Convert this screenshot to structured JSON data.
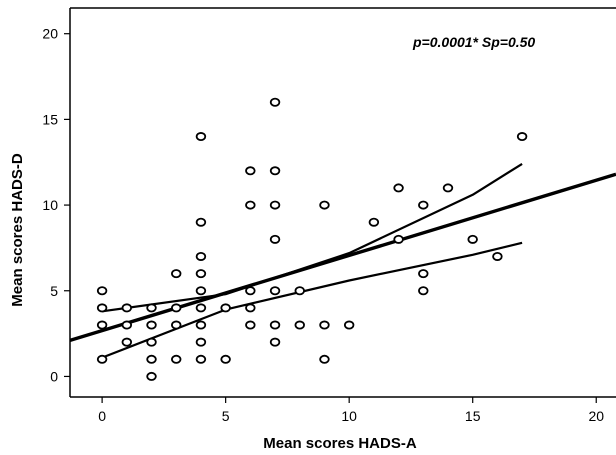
{
  "chart_data": {
    "type": "scatter",
    "title": "",
    "xlabel": "Mean scores HADS-A",
    "ylabel": "Mean scores HADS-D",
    "xlim": [
      -1.3,
      20.8
    ],
    "ylim": [
      -1.2,
      21.5
    ],
    "xticks": [
      "0",
      "5",
      "10",
      "15",
      "20"
    ],
    "yticks": [
      "0",
      "5",
      "10",
      "15",
      "20"
    ],
    "grid": false,
    "annotation": "p=0.0001*  Sp=0.50",
    "points": [
      [
        0,
        1
      ],
      [
        0,
        3
      ],
      [
        0,
        4
      ],
      [
        0,
        5
      ],
      [
        1,
        2
      ],
      [
        1,
        3
      ],
      [
        1,
        4
      ],
      [
        2,
        0
      ],
      [
        2,
        1
      ],
      [
        2,
        2
      ],
      [
        2,
        3
      ],
      [
        2,
        4
      ],
      [
        3,
        1
      ],
      [
        3,
        3
      ],
      [
        3,
        4
      ],
      [
        3,
        6
      ],
      [
        4,
        1
      ],
      [
        4,
        2
      ],
      [
        4,
        3
      ],
      [
        4,
        4
      ],
      [
        4,
        5
      ],
      [
        4,
        6
      ],
      [
        4,
        7
      ],
      [
        4,
        9
      ],
      [
        4,
        14
      ],
      [
        5,
        1
      ],
      [
        5,
        4
      ],
      [
        6,
        3
      ],
      [
        6,
        4
      ],
      [
        6,
        5
      ],
      [
        6,
        10
      ],
      [
        6,
        12
      ],
      [
        7,
        2
      ],
      [
        7,
        3
      ],
      [
        7,
        5
      ],
      [
        7,
        8
      ],
      [
        7,
        10
      ],
      [
        7,
        12
      ],
      [
        7,
        16
      ],
      [
        8,
        3
      ],
      [
        8,
        5
      ],
      [
        9,
        1
      ],
      [
        9,
        3
      ],
      [
        9,
        10
      ],
      [
        10,
        3
      ],
      [
        11,
        9
      ],
      [
        12,
        8
      ],
      [
        12,
        11
      ],
      [
        13,
        5
      ],
      [
        13,
        6
      ],
      [
        13,
        10
      ],
      [
        14,
        11
      ],
      [
        15,
        8
      ],
      [
        16,
        7
      ],
      [
        17,
        14
      ]
    ],
    "regression_line": {
      "x": [
        -1.3,
        20.8
      ],
      "y": [
        2.1,
        11.8
      ]
    },
    "ci_upper": {
      "x": [
        0,
        5,
        10,
        15,
        17
      ],
      "y": [
        3.8,
        4.8,
        7.2,
        10.6,
        12.4
      ]
    },
    "ci_lower": {
      "x": [
        0,
        5,
        10,
        15,
        17
      ],
      "y": [
        1.1,
        3.9,
        5.6,
        7.1,
        7.8
      ]
    }
  }
}
